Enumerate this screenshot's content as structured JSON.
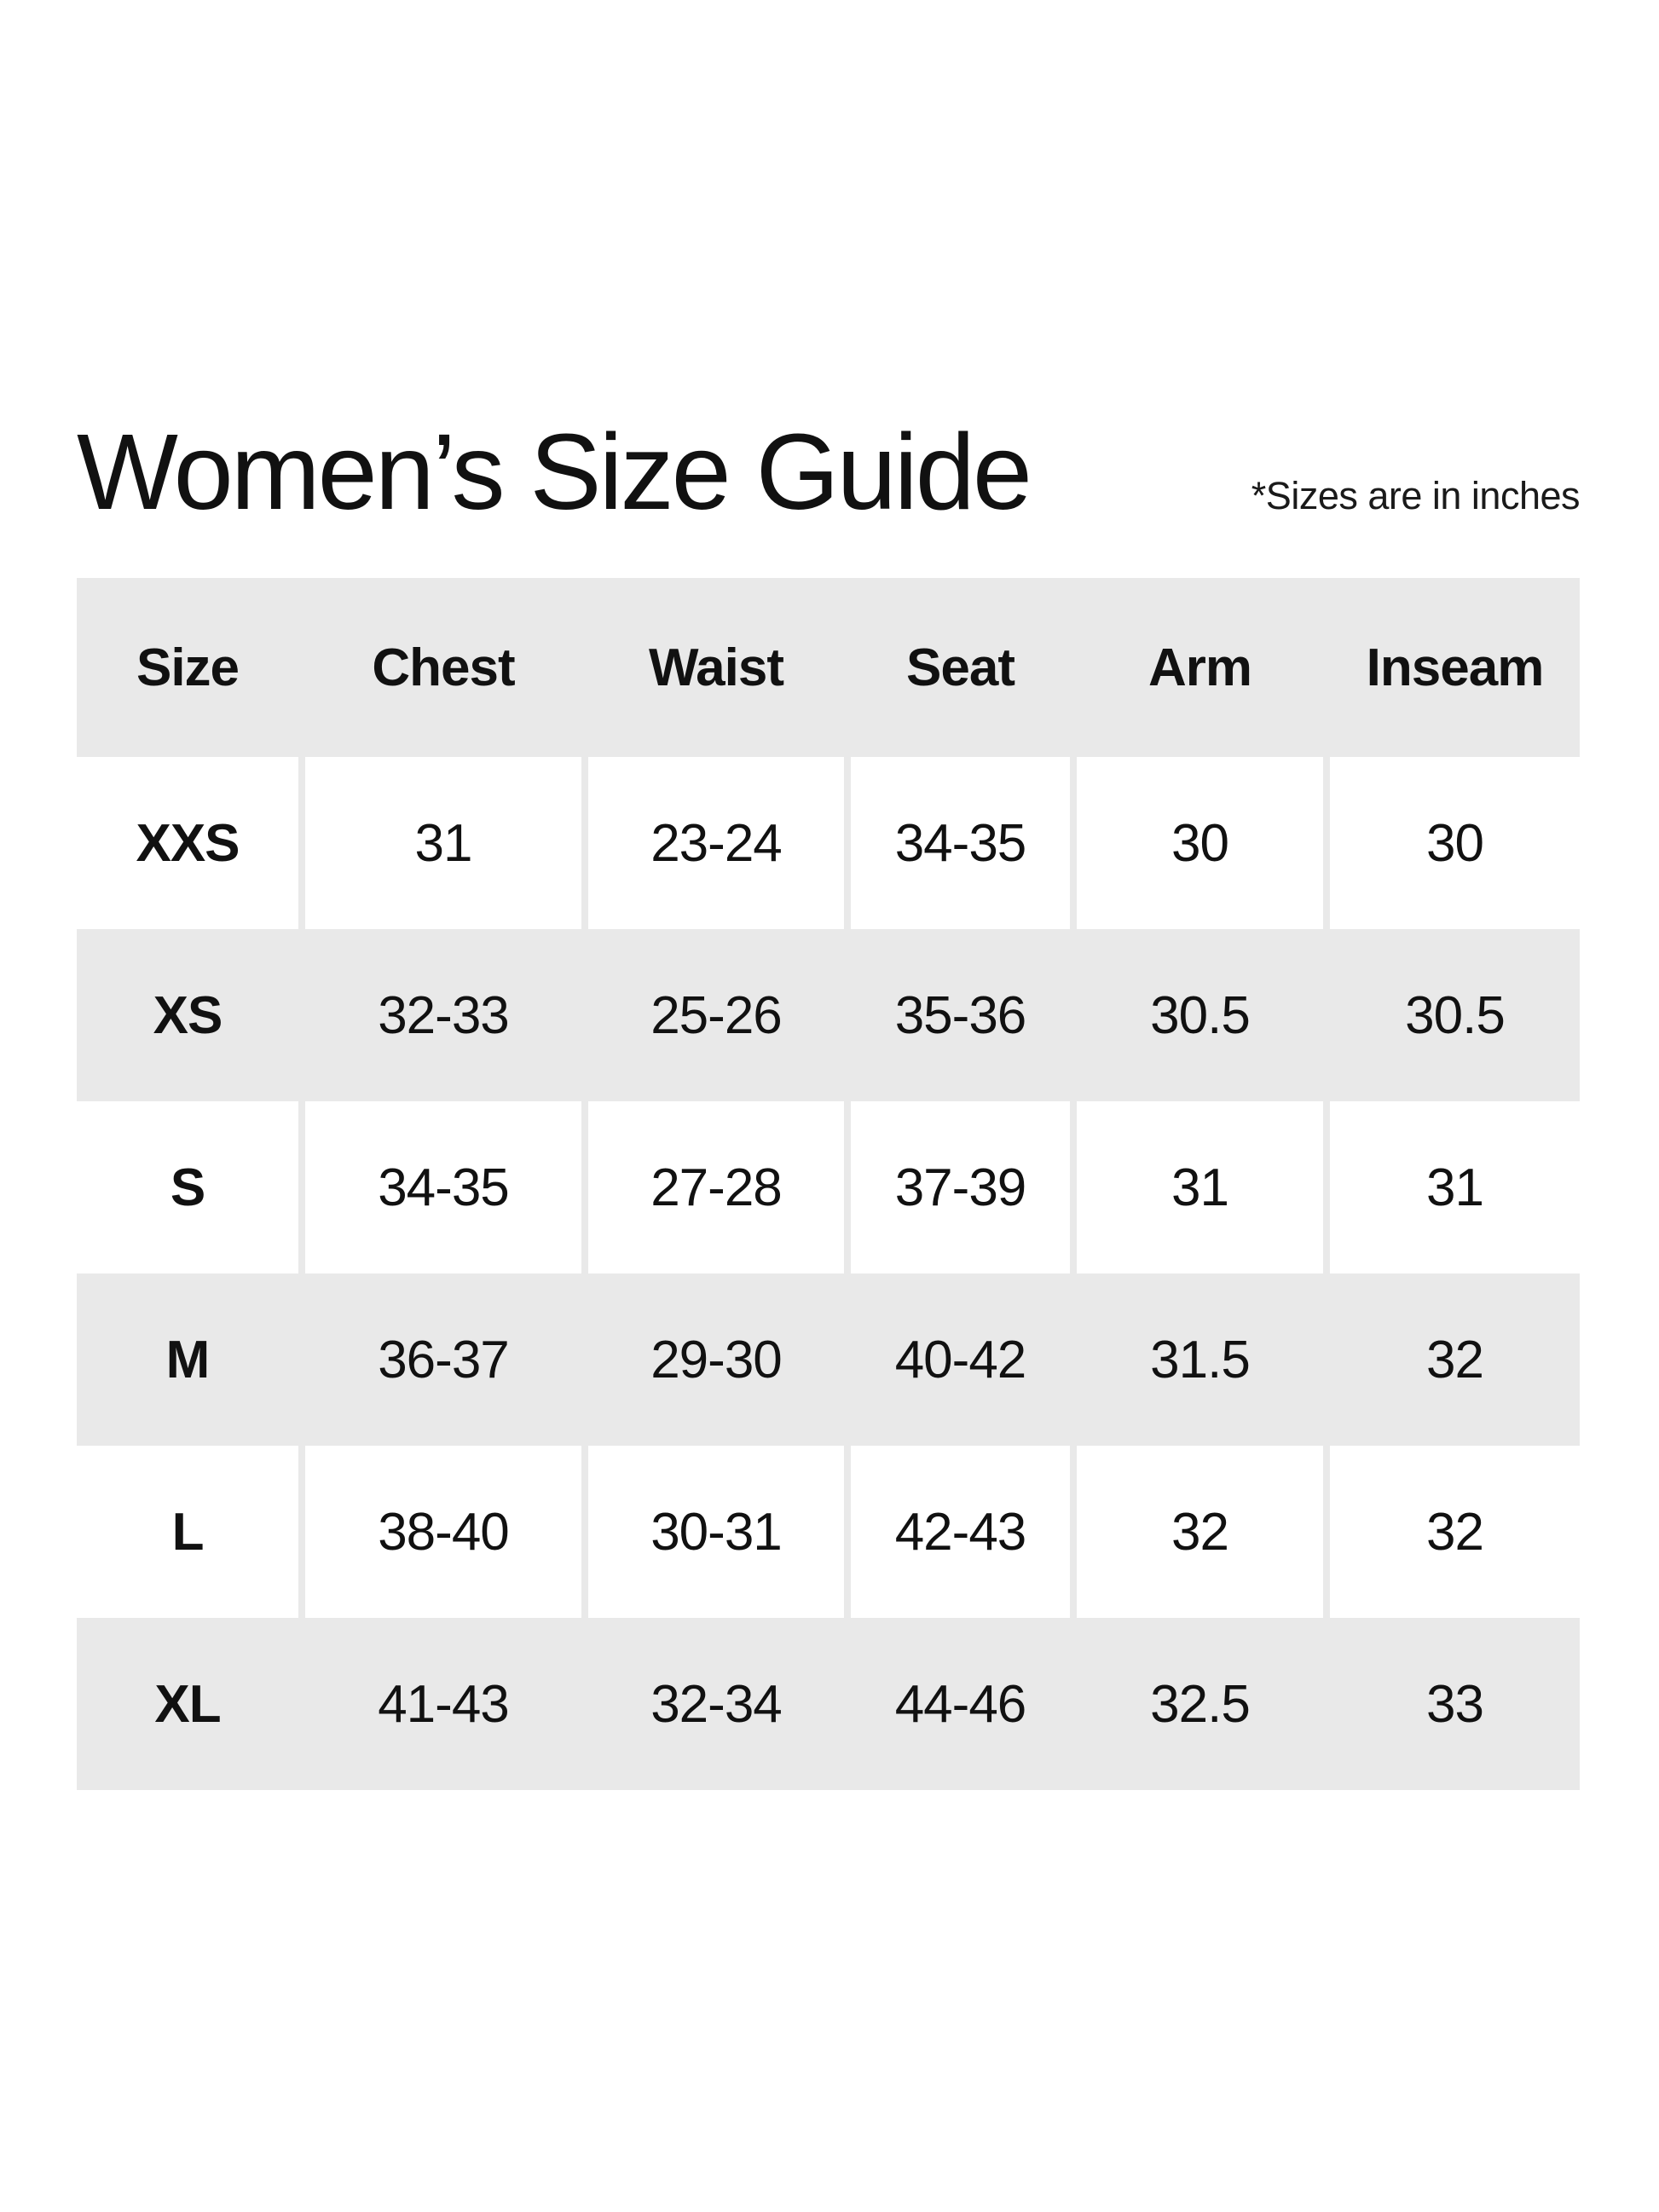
{
  "page": {
    "title": "Women’s Size Guide",
    "note": "*Sizes are in inches"
  },
  "colors": {
    "row_shade": "#e9e9e9",
    "cell_white": "#ffffff",
    "text": "#111111",
    "background": "#ffffff"
  },
  "chart_data": {
    "type": "table",
    "title": "Women’s Size Guide",
    "note": "*Sizes are in inches",
    "units": "inches",
    "columns": [
      "Size",
      "Chest",
      "Waist",
      "Seat",
      "Arm",
      "Inseam"
    ],
    "rows": [
      [
        "XXS",
        "31",
        "23-24",
        "34-35",
        "30",
        "30"
      ],
      [
        "XS",
        "32-33",
        "25-26",
        "35-36",
        "30.5",
        "30.5"
      ],
      [
        "S",
        "34-35",
        "27-28",
        "37-39",
        "31",
        "31"
      ],
      [
        "M",
        "36-37",
        "29-30",
        "40-42",
        "31.5",
        "32"
      ],
      [
        "L",
        "38-40",
        "30-31",
        "42-43",
        "32",
        "32"
      ],
      [
        "XL",
        "41-43",
        "32-34",
        "44-46",
        "32.5",
        "33"
      ]
    ]
  }
}
